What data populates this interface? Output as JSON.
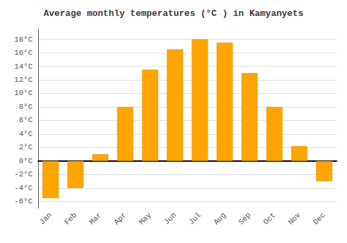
{
  "chart_data": {
    "type": "bar",
    "title": "Average monthly temperatures (°C ) in Kamyanyets",
    "categories": [
      "Jan",
      "Feb",
      "Mar",
      "Apr",
      "May",
      "Jun",
      "Jul",
      "Aug",
      "Sep",
      "Oct",
      "Nov",
      "Dec"
    ],
    "values": [
      -5.5,
      -4.0,
      1.0,
      8.0,
      13.5,
      16.5,
      18.0,
      17.5,
      13.0,
      8.0,
      2.2,
      -3.0
    ],
    "color": "#FFA500",
    "ylim": [
      -7,
      19.5
    ],
    "yticks": [
      {
        "value": -6,
        "label": "-6°C"
      },
      {
        "value": -4,
        "label": "-4°C"
      },
      {
        "value": -2,
        "label": "-2°C"
      },
      {
        "value": 0,
        "label": "0°C"
      },
      {
        "value": 2,
        "label": "2°C"
      },
      {
        "value": 4,
        "label": "4°C"
      },
      {
        "value": 6,
        "label": "6°C"
      },
      {
        "value": 8,
        "label": "8°C"
      },
      {
        "value": 10,
        "label": "10°C"
      },
      {
        "value": 12,
        "label": "12°C"
      },
      {
        "value": 14,
        "label": "14°C"
      },
      {
        "value": 16,
        "label": "16°C"
      },
      {
        "value": 18,
        "label": "18°C"
      }
    ],
    "grid": true
  }
}
